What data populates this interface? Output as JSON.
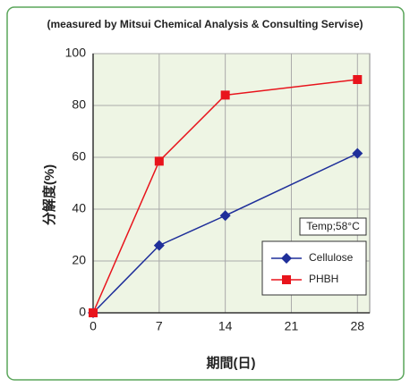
{
  "chart_data": {
    "type": "line",
    "title": "(measured by Mitsui Chemical Analysis & Consulting Servise)",
    "xlabel": "期間(日)",
    "ylabel": "分解度(%)",
    "annotation": "Temp;58°C",
    "x": [
      0,
      7,
      14,
      28
    ],
    "series": [
      {
        "name": "Cellulose",
        "color": "#1f2f9a",
        "marker": "diamond",
        "values": [
          0,
          26,
          37.5,
          61.5
        ]
      },
      {
        "name": "PHBH",
        "color": "#e8141c",
        "marker": "square",
        "values": [
          0,
          58.5,
          84,
          90
        ]
      }
    ],
    "xlim": [
      0,
      29.3
    ],
    "xticks": [
      0,
      7,
      14,
      21,
      28
    ],
    "ylim": [
      0,
      100
    ],
    "yticks": [
      0,
      20,
      40,
      60,
      80,
      100
    ],
    "grid": true,
    "legend": "lower right"
  }
}
